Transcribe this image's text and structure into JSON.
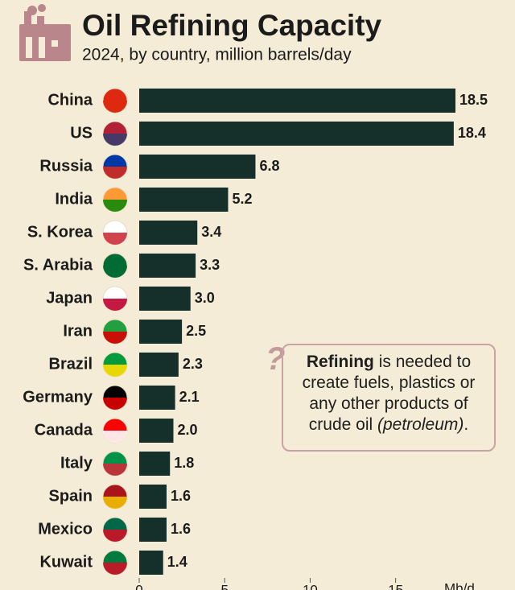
{
  "chart_data": {
    "type": "bar",
    "orientation": "horizontal",
    "title": "Oil Refining Capacity",
    "subtitle": "2024, by country, million barrels/day",
    "categories": [
      "China",
      "US",
      "Russia",
      "India",
      "S. Korea",
      "S. Arabia",
      "Japan",
      "Iran",
      "Brazil",
      "Germany",
      "Canada",
      "Italy",
      "Spain",
      "Mexico",
      "Kuwait"
    ],
    "values": [
      18.5,
      18.4,
      6.8,
      5.2,
      3.4,
      3.3,
      3.0,
      2.5,
      2.3,
      2.1,
      2.0,
      1.8,
      1.6,
      1.6,
      1.4
    ],
    "value_labels": [
      "18.5",
      "18.4",
      "6.8",
      "5.2",
      "3.4",
      "3.3",
      "3.0",
      "2.5",
      "2.3",
      "2.1",
      "2.0",
      "1.8",
      "1.6",
      "1.6",
      "1.4"
    ],
    "color": "#15302a",
    "xlim": [
      0,
      18.5
    ],
    "xticks": [
      0,
      5,
      10,
      15
    ],
    "x_label": "Mb/d",
    "annotation": {
      "bold": "Refining",
      "text": " is needed to create fuels, plastics or any other products of crude oil ",
      "italic": "(petroleum)",
      "end": "."
    }
  }
}
